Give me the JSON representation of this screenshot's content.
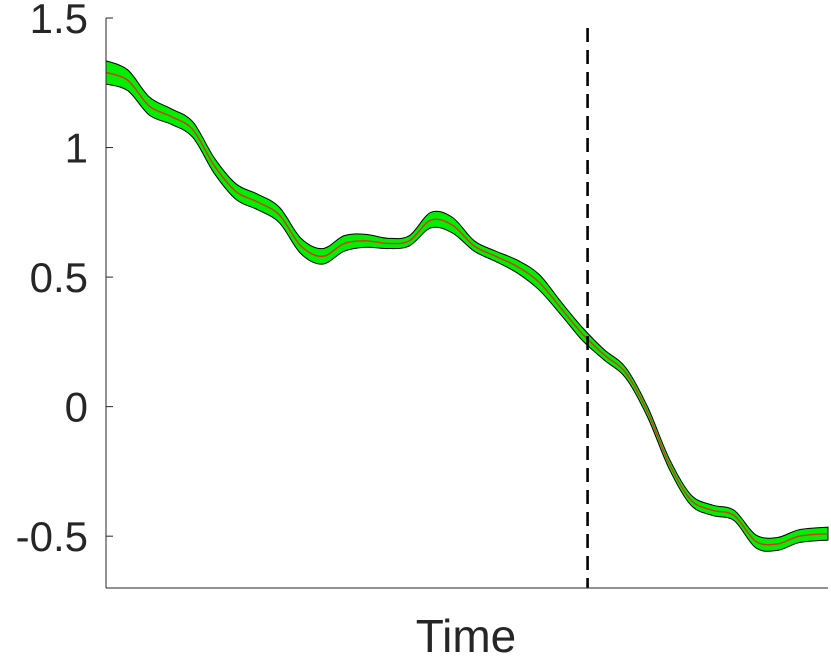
{
  "chart_data": {
    "type": "line",
    "title": "",
    "xlabel": "Time",
    "ylabel": "",
    "ylim": [
      -0.7,
      1.5
    ],
    "yticks": [
      -0.5,
      0,
      0.5,
      1,
      1.5
    ],
    "ytick_labels": [
      "-0.5",
      "0",
      "0.5",
      "1",
      "1.5"
    ],
    "xlim": [
      0,
      1
    ],
    "x_tick_labels_shown": false,
    "grid": false,
    "legend": "none",
    "vline": {
      "x": 0.667,
      "style": "dashed",
      "color": "#000000"
    },
    "series": [
      {
        "color": "#e0301e",
        "band_color": "#00ee00",
        "band_edge_color": "#000000",
        "x": [
          0.0,
          0.03,
          0.06,
          0.09,
          0.12,
          0.15,
          0.18,
          0.21,
          0.24,
          0.27,
          0.3,
          0.33,
          0.36,
          0.39,
          0.42,
          0.45,
          0.48,
          0.51,
          0.54,
          0.57,
          0.6,
          0.63,
          0.66,
          0.69,
          0.72,
          0.75,
          0.78,
          0.81,
          0.84,
          0.87,
          0.9,
          0.93,
          0.96,
          1.0
        ],
        "y": [
          1.29,
          1.26,
          1.16,
          1.12,
          1.07,
          0.93,
          0.83,
          0.79,
          0.74,
          0.62,
          0.58,
          0.63,
          0.64,
          0.63,
          0.64,
          0.72,
          0.7,
          0.62,
          0.58,
          0.54,
          0.48,
          0.38,
          0.28,
          0.2,
          0.13,
          -0.02,
          -0.22,
          -0.36,
          -0.4,
          -0.42,
          -0.52,
          -0.53,
          -0.5,
          -0.49
        ],
        "band_halfwidth": [
          0.045,
          0.04,
          0.035,
          0.03,
          0.03,
          0.03,
          0.03,
          0.03,
          0.03,
          0.03,
          0.03,
          0.03,
          0.025,
          0.02,
          0.02,
          0.03,
          0.03,
          0.02,
          0.02,
          0.025,
          0.03,
          0.025,
          0.025,
          0.02,
          0.02,
          0.02,
          0.02,
          0.02,
          0.02,
          0.02,
          0.025,
          0.025,
          0.025,
          0.025
        ]
      }
    ]
  }
}
